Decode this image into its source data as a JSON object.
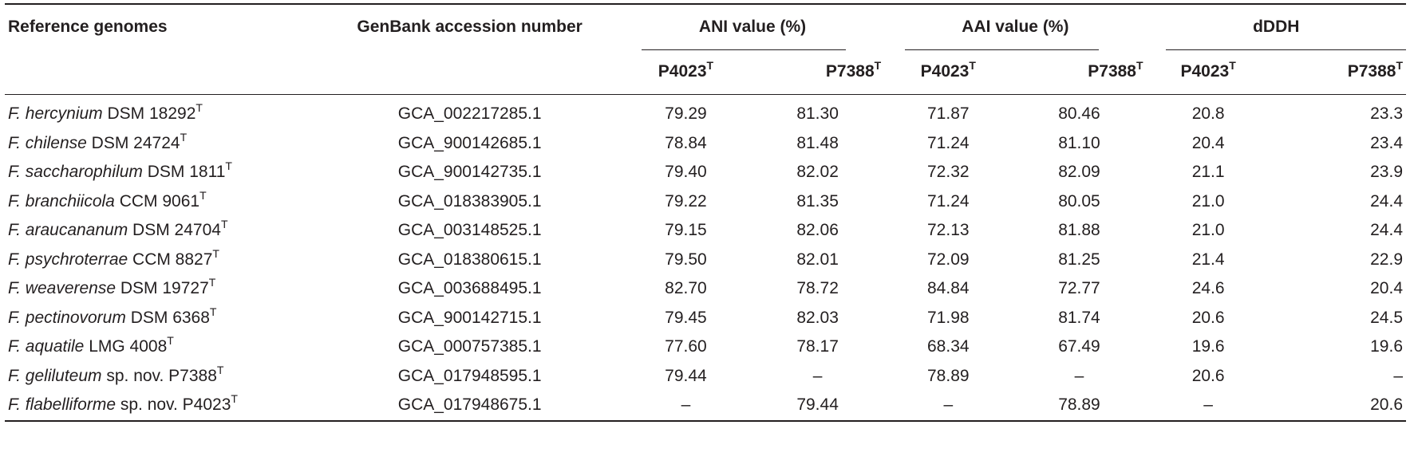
{
  "header": {
    "ref": "Reference genomes",
    "acc": "GenBank accession number",
    "ani": "ANI value (%)",
    "aai": "AAI value (%)",
    "ddh": "dDDH",
    "sub1": "P4023",
    "sub2": "P7388",
    "sup": "T"
  },
  "rows": [
    {
      "genus": "F. hercynium",
      "strain": " DSM 18292",
      "sup": "T",
      "acc": "GCA_002217285.1",
      "v": [
        "79.29",
        "81.30",
        "71.87",
        "80.46",
        "20.8",
        "23.3"
      ]
    },
    {
      "genus": "F. chilense",
      "strain": " DSM 24724",
      "sup": "T",
      "acc": "GCA_900142685.1",
      "v": [
        "78.84",
        "81.48",
        "71.24",
        "81.10",
        "20.4",
        "23.4"
      ]
    },
    {
      "genus": "F. saccharophilum",
      "strain": " DSM 1811",
      "sup": "T",
      "acc": "GCA_900142735.1",
      "v": [
        "79.40",
        "82.02",
        "72.32",
        "82.09",
        "21.1",
        "23.9"
      ]
    },
    {
      "genus": "F. branchiicola",
      "strain": " CCM 9061",
      "sup": "T",
      "acc": "GCA_018383905.1",
      "v": [
        "79.22",
        "81.35",
        "71.24",
        "80.05",
        "21.0",
        "24.4"
      ]
    },
    {
      "genus": "F. araucananum",
      "strain": " DSM 24704",
      "sup": "T",
      "acc": "GCA_003148525.1",
      "v": [
        "79.15",
        "82.06",
        "72.13",
        "81.88",
        "21.0",
        "24.4"
      ]
    },
    {
      "genus": "F. psychroterrae",
      "strain": " CCM 8827",
      "sup": "T",
      "acc": "GCA_018380615.1",
      "v": [
        "79.50",
        "82.01",
        "72.09",
        "81.25",
        "21.4",
        "22.9"
      ]
    },
    {
      "genus": "F. weaverense",
      "strain": " DSM 19727",
      "sup": "T",
      "acc": "GCA_003688495.1",
      "v": [
        "82.70",
        "78.72",
        "84.84",
        "72.77",
        "24.6",
        "20.4"
      ]
    },
    {
      "genus": "F. pectinovorum",
      "strain": " DSM 6368",
      "sup": "T",
      "acc": "GCA_900142715.1",
      "v": [
        "79.45",
        "82.03",
        "71.98",
        "81.74",
        "20.6",
        "24.5"
      ]
    },
    {
      "genus": "F. aquatile",
      "strain": " LMG 4008",
      "sup": "T",
      "acc": "GCA_000757385.1",
      "v": [
        "77.60",
        "78.17",
        "68.34",
        "67.49",
        "19.6",
        "19.6"
      ]
    },
    {
      "genus": "F. geliluteum",
      "strain": " sp. nov. P7388",
      "sup": "T",
      "acc": "GCA_017948595.1",
      "v": [
        "79.44",
        "–",
        "78.89",
        "–",
        "20.6",
        "–"
      ]
    },
    {
      "genus": "F. flabelliforme",
      "strain": " sp. nov. P4023",
      "sup": "T",
      "acc": "GCA_017948675.1",
      "v": [
        "–",
        "79.44",
        "–",
        "78.89",
        "–",
        "20.6"
      ]
    }
  ]
}
